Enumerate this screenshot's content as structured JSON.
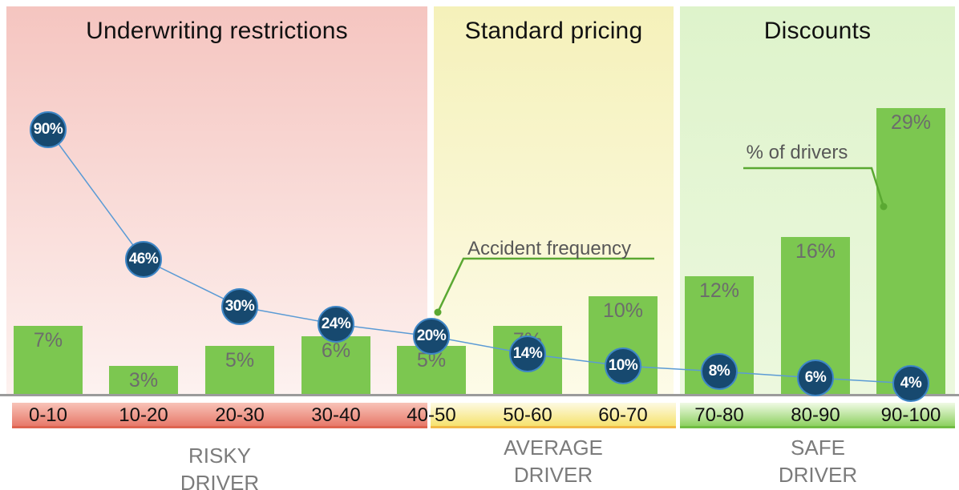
{
  "chart_data": {
    "type": "bar+line",
    "categories": [
      "0-10",
      "10-20",
      "20-30",
      "30-40",
      "40-50",
      "50-60",
      "60-70",
      "70-80",
      "80-90",
      "90-100"
    ],
    "series": [
      {
        "name": "% of drivers",
        "type": "bar",
        "values": [
          7,
          3,
          5,
          6,
          5,
          7,
          10,
          12,
          16,
          29
        ],
        "unit": "%",
        "color": "#7cc750",
        "label_color": "#6c6c6c"
      },
      {
        "name": "Accident frequency",
        "type": "line",
        "values": [
          90,
          46,
          30,
          24,
          20,
          14,
          10,
          8,
          6,
          4
        ],
        "unit": "%",
        "line_color": "#5b9bd5",
        "marker_fill": "#17496f",
        "marker_ring": "#3e86c6",
        "marker_text_color": "#ffffff"
      }
    ],
    "xlabel": "",
    "ylabel": "",
    "y_axis_visible": false,
    "ylim_bar": [
      0,
      40
    ],
    "ylim_line": [
      0,
      133
    ],
    "grid": false,
    "legend_position": "inline-annotations"
  },
  "zones": [
    {
      "title": "Underwriting restrictions",
      "driver_label": [
        "RISKY",
        "DRIVER"
      ],
      "panel_top_color": "#f5c5c0",
      "panel_bottom_color": "#fdf2f0",
      "band_top_color": "#f8c3b8",
      "band_bottom_color": "#e7796a",
      "band_border_color": "#de6450"
    },
    {
      "title": "Standard pricing",
      "driver_label": [
        "AVERAGE",
        "DRIVER"
      ],
      "panel_top_color": "#f5f1ba",
      "panel_bottom_color": "#fdfbe8",
      "band_top_color": "#fdfae3",
      "band_bottom_color": "#f6e26e",
      "band_border_color": "#f2b947"
    },
    {
      "title": "Discounts",
      "driver_label": [
        "SAFE",
        "DRIVER"
      ],
      "panel_top_color": "#def3cb",
      "panel_bottom_color": "#ecf8de",
      "band_top_color": "#f0fae5",
      "band_bottom_color": "#8ed162",
      "band_border_color": "#71bd44"
    }
  ],
  "annotations": {
    "accident_frequency": {
      "text": "Accident frequency",
      "color": "#575757",
      "line_color": "#5aa832"
    },
    "pct_of_drivers": {
      "text": "% of drivers",
      "color": "#575757",
      "line_color": "#5aa832"
    }
  },
  "axis": {
    "line_color": "#9b9b9b",
    "tick_label_color": "#111111"
  },
  "driver_label_color": "#7b7b7b",
  "title_color": "#111111"
}
